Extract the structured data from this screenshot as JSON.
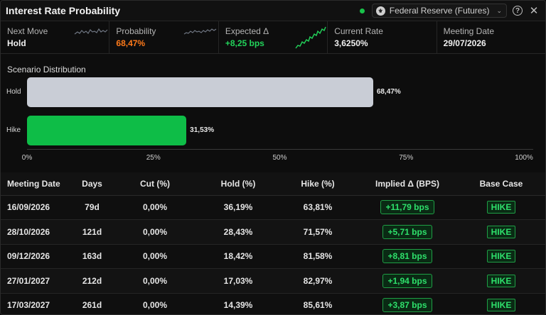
{
  "header": {
    "title": "Interest Rate Probability",
    "source_label": "Federal Reserve (Futures)",
    "status_color": "#19c24a",
    "icons": [
      "source-logo-icon",
      "chevron-down-icon",
      "help-icon",
      "close-icon"
    ]
  },
  "stats": [
    {
      "label": "Next Move",
      "value": "Hold"
    },
    {
      "label": "Probability",
      "value": "68,47%"
    },
    {
      "label": "Expected Δ",
      "value": "+8,25 bps"
    },
    {
      "label": "Current Rate",
      "value": "3,6250%"
    },
    {
      "label": "Meeting Date",
      "value": "29/07/2026"
    }
  ],
  "colors": {
    "orange": "#ff7a1a",
    "green": "#22d35a",
    "hold_bar": "#c9cdd6",
    "hike_bar": "#0ebd47"
  },
  "chart_data": {
    "type": "bar",
    "orientation": "horizontal",
    "title": "Scenario Distribution",
    "categories": [
      "Hold",
      "Hike"
    ],
    "values": [
      68.47,
      31.53
    ],
    "value_labels": [
      "68,47%",
      "31,53%"
    ],
    "xlim": [
      0,
      100
    ],
    "x_ticks": [
      "0%",
      "25%",
      "50%",
      "75%",
      "100%"
    ],
    "grid": false
  },
  "table": {
    "columns": [
      "Meeting Date",
      "Days",
      "Cut (%)",
      "Hold (%)",
      "Hike (%)",
      "Implied Δ (BPS)",
      "Base Case"
    ],
    "rows": [
      {
        "date": "16/09/2026",
        "days": "79d",
        "cut": "0,00%",
        "hold": "36,19%",
        "hike": "63,81%",
        "implied": "+11,79 bps",
        "base": "HIKE"
      },
      {
        "date": "28/10/2026",
        "days": "121d",
        "cut": "0,00%",
        "hold": "28,43%",
        "hike": "71,57%",
        "implied": "+5,71 bps",
        "base": "HIKE"
      },
      {
        "date": "09/12/2026",
        "days": "163d",
        "cut": "0,00%",
        "hold": "18,42%",
        "hike": "81,58%",
        "implied": "+8,81 bps",
        "base": "HIKE"
      },
      {
        "date": "27/01/2027",
        "days": "212d",
        "cut": "0,00%",
        "hold": "17,03%",
        "hike": "82,97%",
        "implied": "+1,94 bps",
        "base": "HIKE"
      },
      {
        "date": "17/03/2027",
        "days": "261d",
        "cut": "0,00%",
        "hold": "14,39%",
        "hike": "85,61%",
        "implied": "+3,87 bps",
        "base": "HIKE"
      }
    ]
  }
}
